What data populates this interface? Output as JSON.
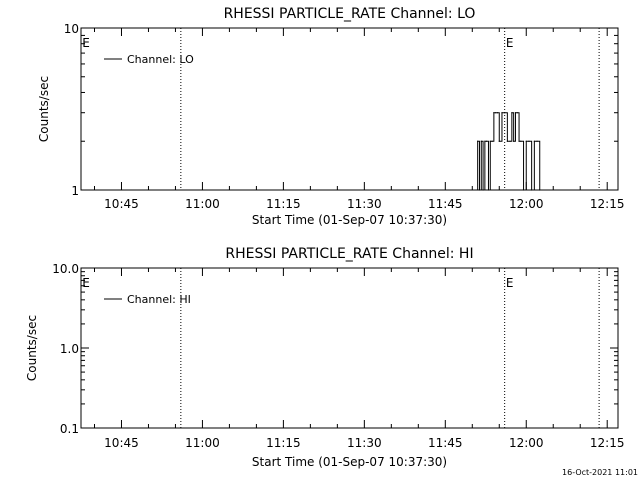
{
  "chart_data": [
    {
      "type": "line",
      "title": "RHESSI PARTICLE_RATE Channel: LO",
      "xlabel": "Start Time (01-Sep-07 10:37:30)",
      "ylabel": "Counts/sec",
      "yscale": "log",
      "ylim": [
        1,
        10
      ],
      "ytick_labels": [
        "1",
        "10"
      ],
      "xlim": [
        "10:37:30",
        "12:17:00"
      ],
      "xtick_labels": [
        "10:45",
        "11:00",
        "11:15",
        "11:30",
        "11:45",
        "12:00",
        "12:15"
      ],
      "grid": false,
      "legend_position": "top-left",
      "event_markers": [
        {
          "time": "10:56:00",
          "label": "E"
        },
        {
          "time": "11:56:00",
          "label": ""
        },
        {
          "time": "12:13:30",
          "label": ""
        }
      ],
      "event_letters": [
        "E",
        "E"
      ],
      "series": [
        {
          "name": "Channel: LO",
          "x": [
            "11:51:00",
            "11:51:20",
            "11:51:40",
            "11:52:00",
            "11:52:20",
            "11:52:40",
            "11:53:00",
            "11:53:20",
            "11:53:40",
            "11:54:00",
            "11:54:20",
            "11:54:40",
            "11:55:00",
            "11:55:30",
            "11:56:00",
            "11:56:30",
            "11:57:00",
            "11:57:20",
            "11:57:40",
            "11:58:00",
            "11:58:20",
            "11:58:40",
            "11:59:00",
            "11:59:30",
            "12:00:00",
            "12:00:30",
            "12:01:00",
            "12:01:30",
            "12:02:00",
            "12:02:30"
          ],
          "y": [
            2,
            1,
            2,
            1,
            2,
            2,
            1,
            2,
            2,
            3,
            3,
            3,
            2,
            3,
            3,
            2,
            2,
            3,
            2,
            3,
            3,
            2,
            2,
            1,
            2,
            2,
            1,
            2,
            2,
            1
          ]
        }
      ]
    },
    {
      "type": "line",
      "title": "RHESSI PARTICLE_RATE Channel: HI",
      "xlabel": "Start Time (01-Sep-07 10:37:30)",
      "ylabel": "Counts/sec",
      "yscale": "log",
      "ylim": [
        0.1,
        10
      ],
      "ytick_labels": [
        "0.1",
        "1.0",
        "10.0"
      ],
      "xlim": [
        "10:37:30",
        "12:17:00"
      ],
      "xtick_labels": [
        "10:45",
        "11:00",
        "11:15",
        "11:30",
        "11:45",
        "12:00",
        "12:15"
      ],
      "grid": false,
      "legend_position": "top-left",
      "event_markers": [
        {
          "time": "10:56:00",
          "label": ""
        },
        {
          "time": "11:56:00",
          "label": ""
        },
        {
          "time": "12:13:30",
          "label": ""
        }
      ],
      "event_letters": [
        "E",
        "E"
      ],
      "series": [
        {
          "name": "Channel: HI",
          "x": [],
          "y": []
        }
      ]
    }
  ],
  "footer": {
    "timestamp": "16-Oct-2021 11:01"
  }
}
